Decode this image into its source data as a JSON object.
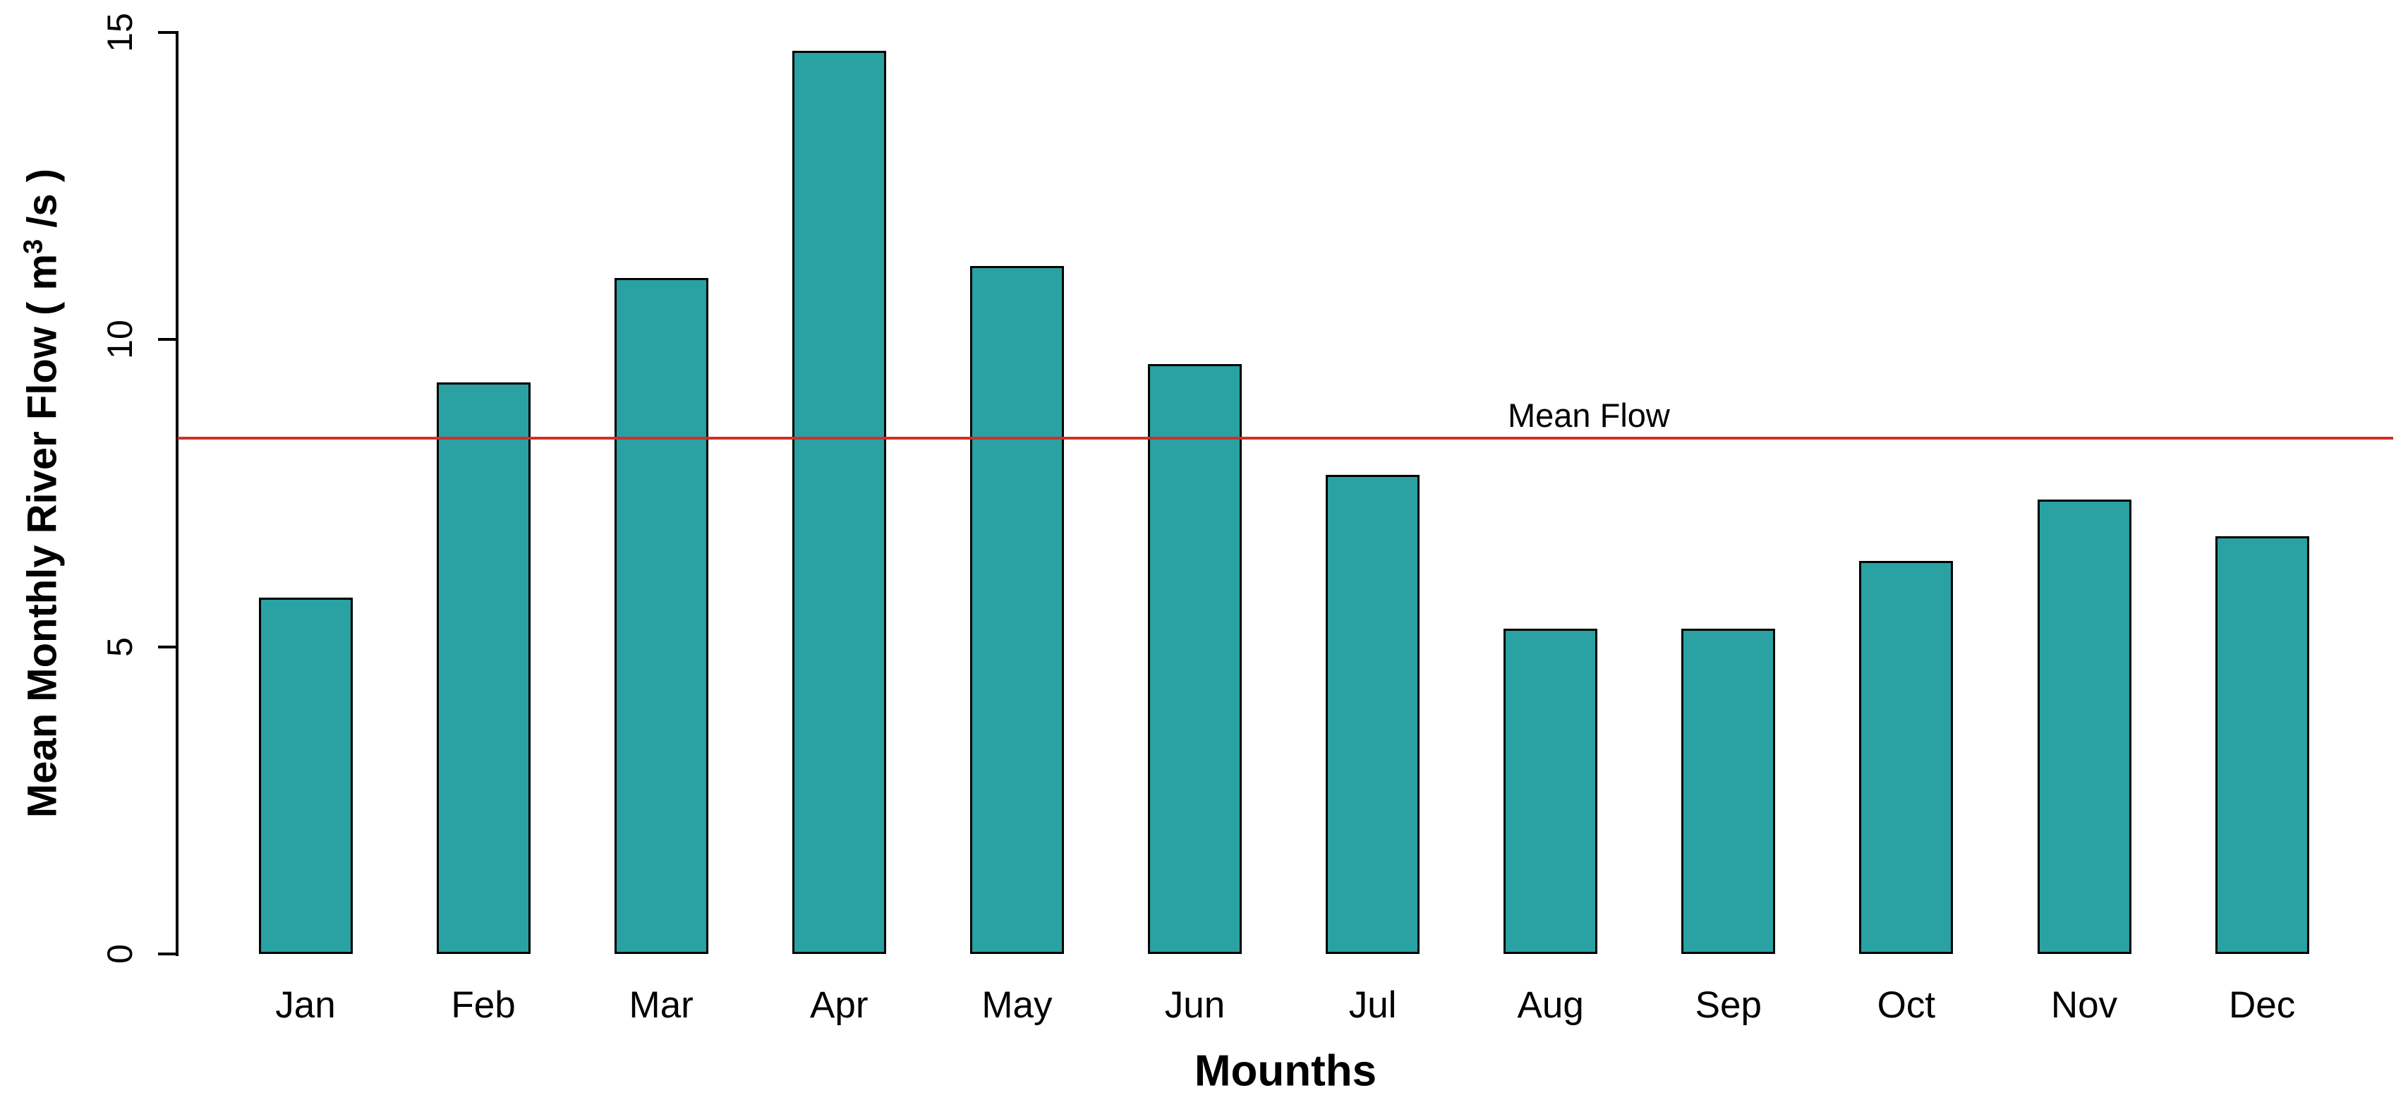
{
  "chart": {
    "x_axis_title": "Mounths",
    "y_axis_title": {
      "prefix": "Mean Monthly River Flow ( m",
      "sup": "3",
      "suffix": " /s )"
    },
    "mean_line_label": "Mean Flow"
  },
  "chart_data": {
    "type": "bar",
    "title": "",
    "xlabel": "Mounths",
    "ylabel": "Mean Monthly River Flow ( m^3 /s )",
    "categories": [
      "Jan",
      "Feb",
      "Mar",
      "Apr",
      "May",
      "Jun",
      "Jul",
      "Aug",
      "Sep",
      "Oct",
      "Nov",
      "Dec"
    ],
    "values": [
      5.8,
      9.3,
      11.0,
      14.7,
      11.2,
      9.6,
      7.8,
      5.3,
      5.3,
      6.4,
      7.4,
      6.8
    ],
    "mean_line": {
      "label": "Mean Flow",
      "value": 8.4
    },
    "yticks": [
      0,
      5,
      10,
      15
    ],
    "ylim": [
      0,
      15
    ],
    "grid": false,
    "legend": "none",
    "bar_color": "#2aa1a2",
    "bar_border_color": "#000000",
    "axis_color": "#000000",
    "mean_line_color": "#d03028"
  }
}
